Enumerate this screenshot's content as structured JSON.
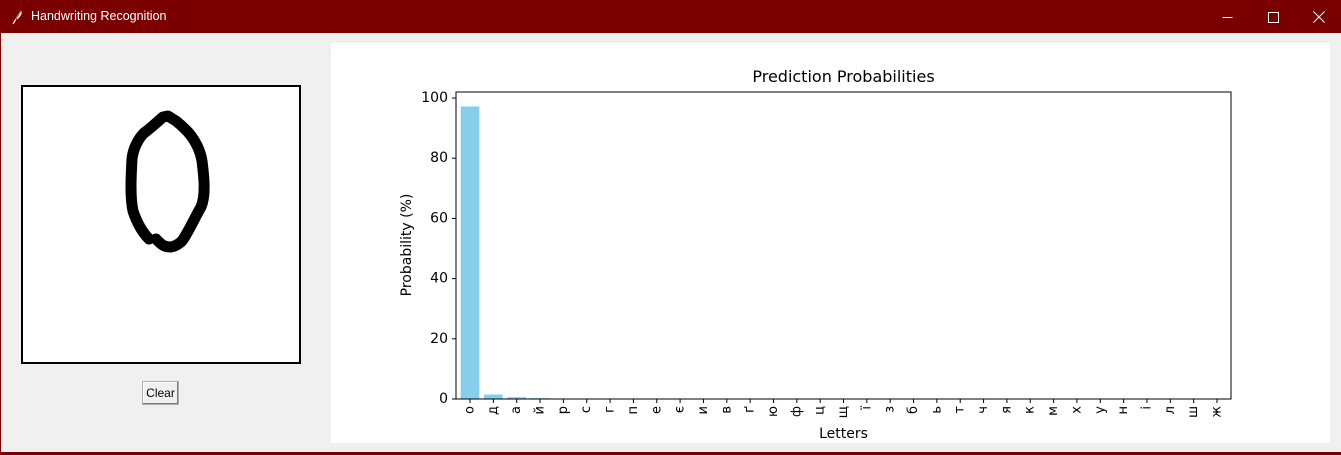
{
  "window": {
    "title": "Handwriting Recognition",
    "titlebar_color": "#7a0000",
    "icons": [
      "feather-icon",
      "minimize-icon",
      "maximize-icon",
      "close-icon"
    ]
  },
  "drawing_canvas": {
    "content": "handwritten letter o",
    "stroke_color": "#000000",
    "background": "#ffffff"
  },
  "controls": {
    "clear_label": "Clear"
  },
  "chart_data": {
    "type": "bar",
    "title": "Prediction Probabilities",
    "xlabel": "Letters",
    "ylabel": "Probability (%)",
    "ylim": [
      0,
      102
    ],
    "yticks": [
      0,
      20,
      40,
      60,
      80,
      100
    ],
    "bar_color": "#87ceeb",
    "grid": false,
    "categories": [
      "о",
      "д",
      "а",
      "й",
      "р",
      "с",
      "г",
      "п",
      "е",
      "є",
      "и",
      "в",
      "ґ",
      "ю",
      "ф",
      "ц",
      "щ",
      "ї",
      "з",
      "б",
      "ь",
      "т",
      "ч",
      "я",
      "к",
      "м",
      "х",
      "у",
      "н",
      "і",
      "л",
      "ш",
      "ж"
    ],
    "values": [
      97.2,
      1.5,
      0.6,
      0.3,
      0.1,
      0.05,
      0.04,
      0.03,
      0.02,
      0.02,
      0.02,
      0.01,
      0.01,
      0.01,
      0.01,
      0.01,
      0.01,
      0.01,
      0.01,
      0.01,
      0.01,
      0.01,
      0.01,
      0.01,
      0.01,
      0.01,
      0.01,
      0.01,
      0.01,
      0.01,
      0.01,
      0.01,
      0.01
    ]
  }
}
